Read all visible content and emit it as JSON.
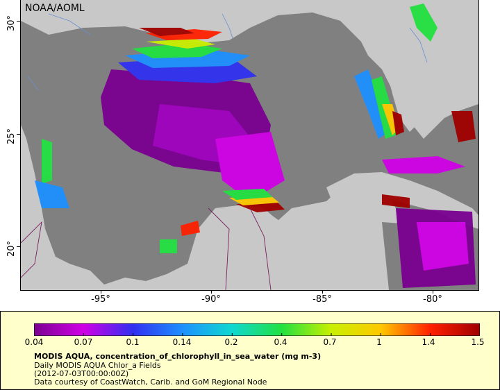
{
  "credit": "NOAA/AOML",
  "y_ticks": [
    "30°",
    "25°",
    "20°"
  ],
  "x_ticks": [
    "-95°",
    "-90°",
    "-85°",
    "-80°"
  ],
  "colorbar": {
    "labels": [
      "0.04",
      "0.07",
      "0.1",
      "0.14",
      "0.2",
      "0.4",
      "0.7",
      "1",
      "1.4",
      "1.5"
    ],
    "colors": [
      "#7a0090",
      "#d000e6",
      "#3030f0",
      "#1e90ff",
      "#10d8d0",
      "#22e040",
      "#c8f000",
      "#ffc800",
      "#ff2000",
      "#a00000"
    ]
  },
  "legend": {
    "title": "MODIS AQUA, concentration_of_chlorophyll_in_sea_water (mg m-3)",
    "line2": "Daily MODIS AQUA Chlor_a Fields",
    "line3": "(2012-07-03T00:00:00Z)",
    "line4": "Data courtesy of CoastWatch, Carib. and GoM Regional Node"
  },
  "colors": {
    "land": "#c8c8c8",
    "nodata": "#808080",
    "legend_bg": "#ffffcc"
  }
}
